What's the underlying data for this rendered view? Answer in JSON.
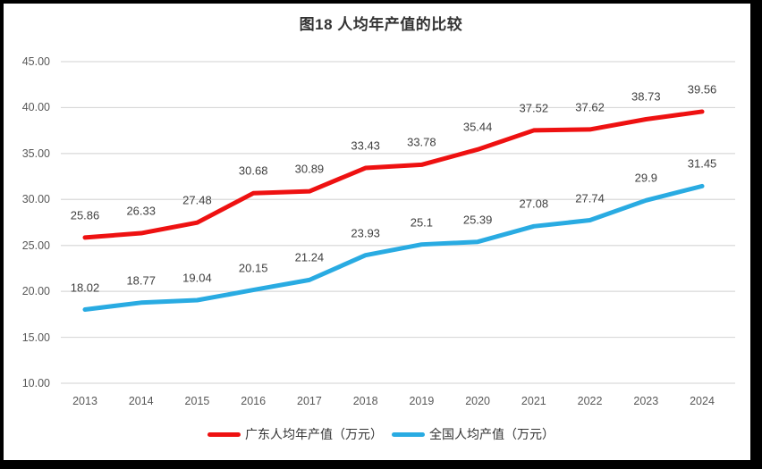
{
  "frame": {
    "border_color": "#000000",
    "background_color": "#ffffff"
  },
  "chart_data": {
    "type": "line",
    "title": "图18 人均年产值的比较",
    "categories": [
      "2013",
      "2014",
      "2015",
      "2016",
      "2017",
      "2018",
      "2019",
      "2020",
      "2021",
      "2022",
      "2023",
      "2024"
    ],
    "series": [
      {
        "name": "广东人均年产值（万元）",
        "color": "#ee1111",
        "values": [
          25.86,
          26.33,
          27.48,
          30.68,
          30.89,
          33.43,
          33.78,
          35.44,
          37.52,
          37.62,
          38.73,
          39.56
        ]
      },
      {
        "name": "全国人均产值（万元）",
        "color": "#29abe2",
        "values": [
          18.02,
          18.77,
          19.04,
          20.15,
          21.24,
          23.93,
          25.1,
          25.39,
          27.08,
          27.74,
          29.9,
          31.45
        ]
      }
    ],
    "xlabel": "",
    "ylabel": "",
    "ylim": [
      10,
      45
    ],
    "y_ticks": [
      45,
      40,
      35,
      30,
      25,
      20,
      15,
      10
    ],
    "y_tick_decimals": 2,
    "grid": "horizontal",
    "legend_position": "bottom",
    "data_labels": "above",
    "colors": {
      "gridline": "#d9d9d9",
      "axis_text": "#595959",
      "data_label_text": "#404040",
      "title_text": "#333333"
    }
  }
}
